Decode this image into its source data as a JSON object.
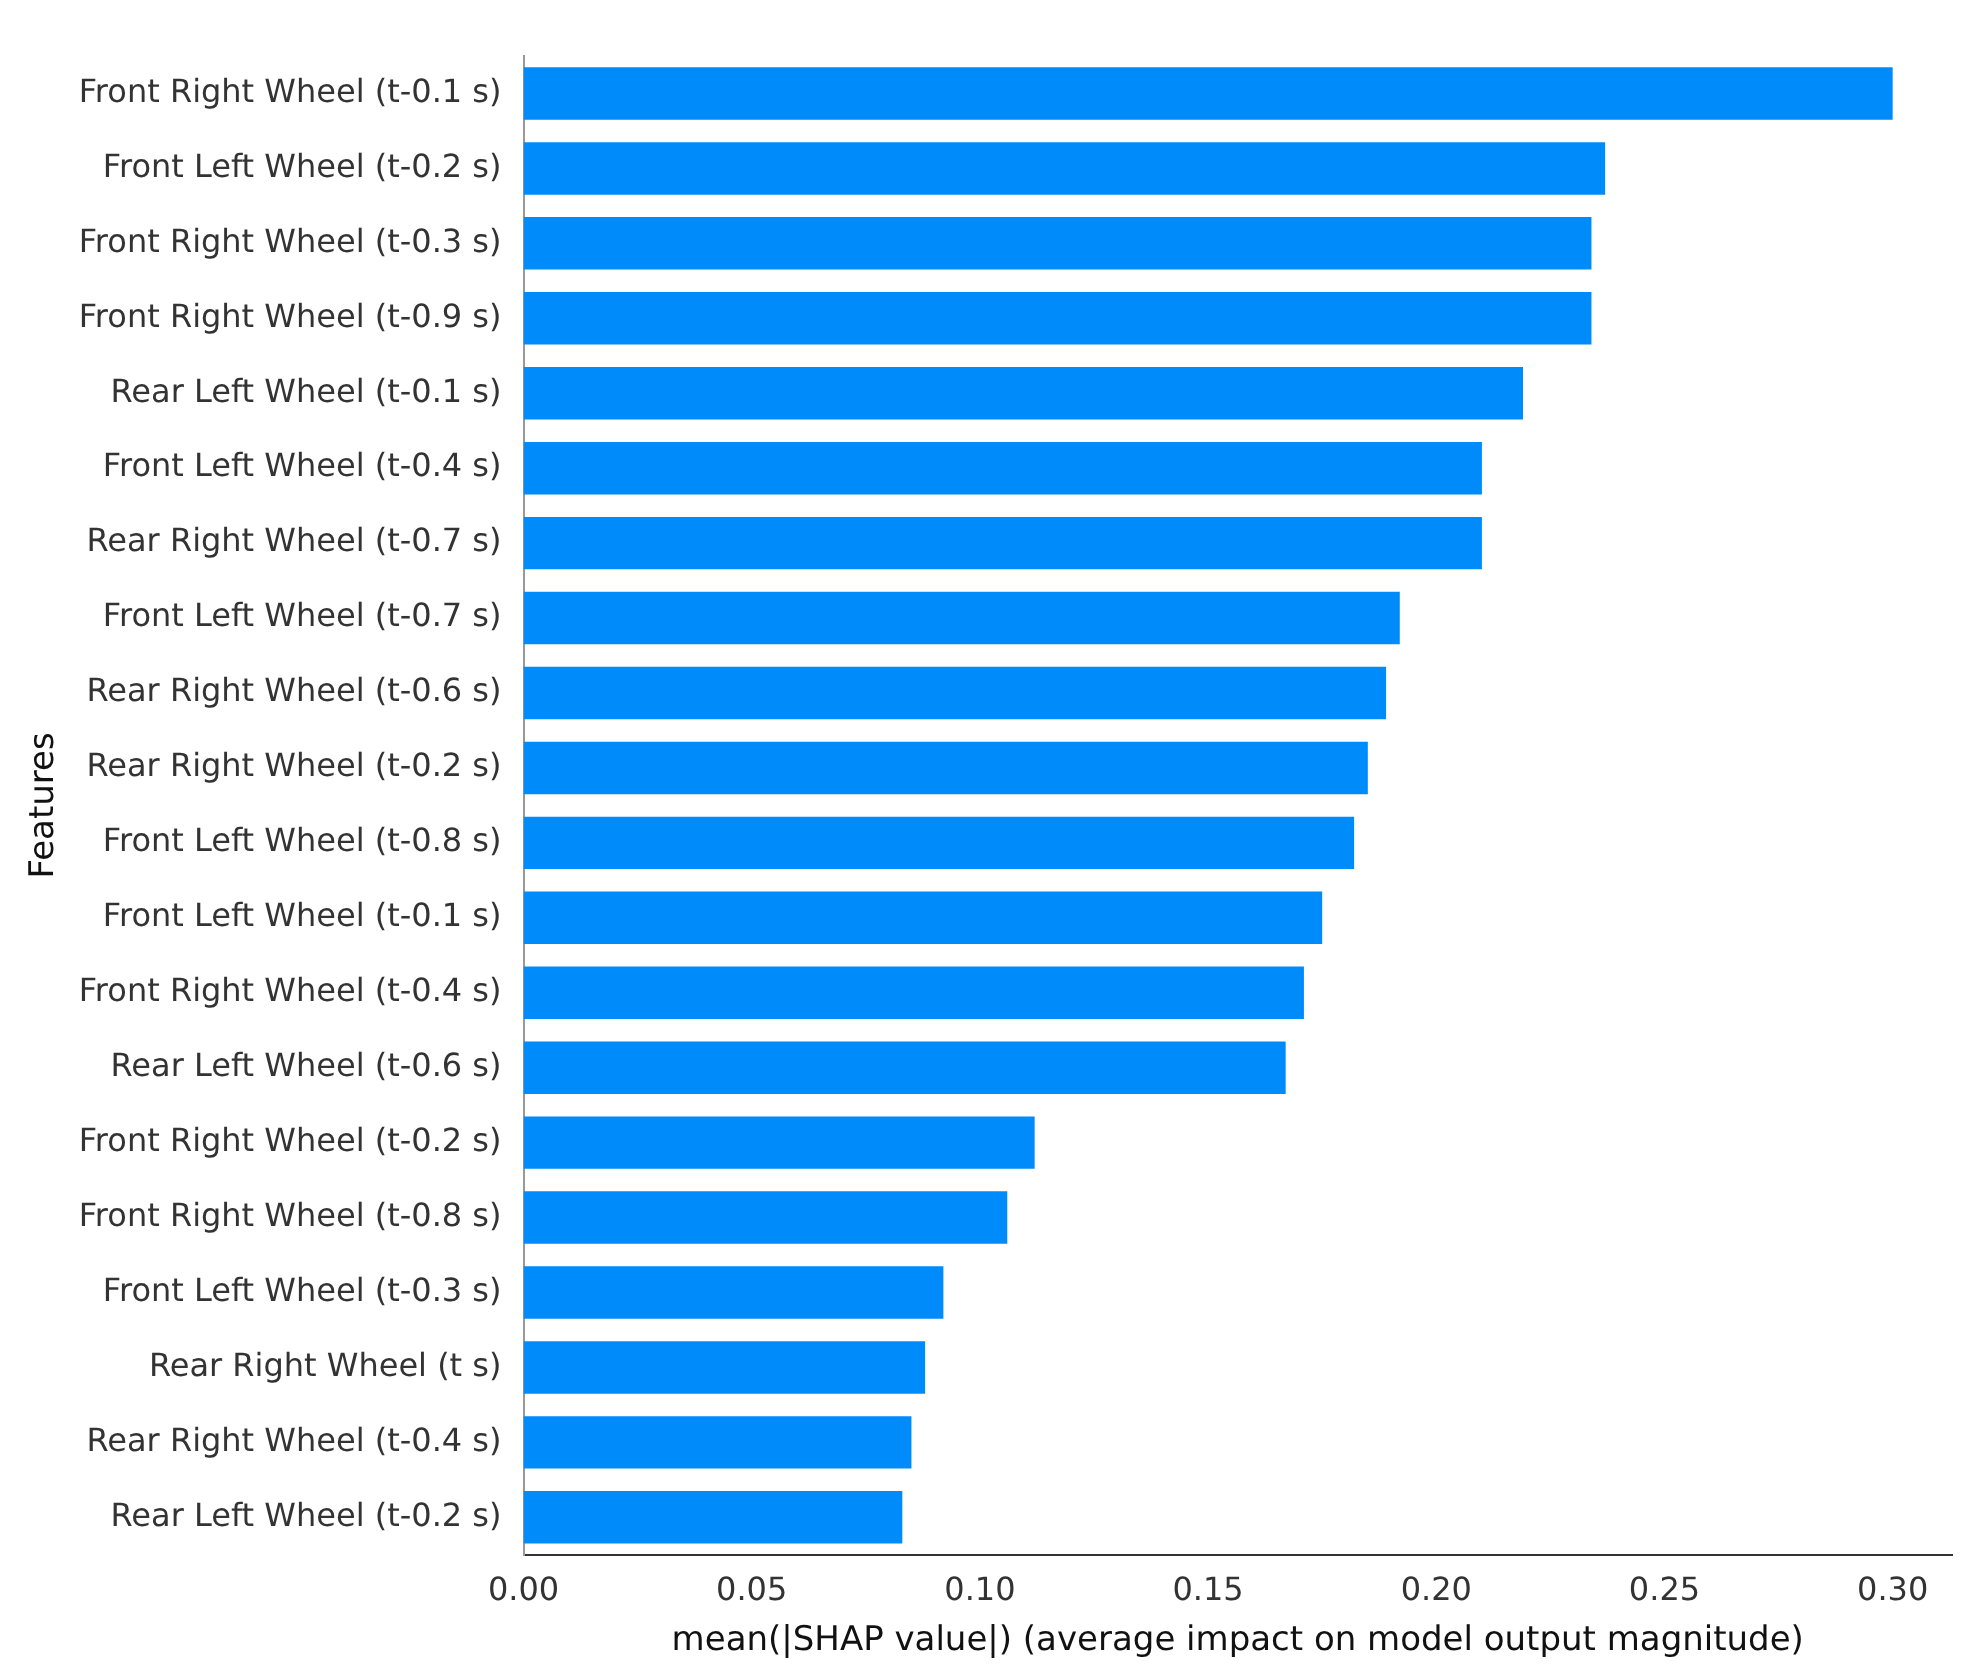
{
  "chart_data": {
    "type": "bar",
    "orientation": "horizontal",
    "xlabel": "mean(|SHAP value|) (average impact on model output magnitude)",
    "ylabel": "Features",
    "categories": [
      "Front Right Wheel (t-0.1 s)",
      "Front Left Wheel (t-0.2 s)",
      "Front Right Wheel (t-0.3 s)",
      "Front Right Wheel (t-0.9 s)",
      "Rear Left Wheel (t-0.1 s)",
      "Front Left Wheel (t-0.4 s)",
      "Rear Right Wheel (t-0.7 s)",
      "Front Left Wheel (t-0.7 s)",
      "Rear Right Wheel (t-0.6 s)",
      "Rear Right Wheel (t-0.2 s)",
      "Front Left Wheel (t-0.8 s)",
      "Front Left Wheel (t-0.1 s)",
      "Front Right Wheel (t-0.4 s)",
      "Rear Left Wheel (t-0.6 s)",
      "Front Right Wheel (t-0.2 s)",
      "Front Right Wheel (t-0.8 s)",
      "Front Left Wheel (t-0.3 s)",
      "Rear Right Wheel (t s)",
      "Rear Right Wheel (t-0.4 s)",
      "Rear Left Wheel (t-0.2 s)"
    ],
    "values": [
      0.3,
      0.237,
      0.234,
      0.234,
      0.219,
      0.21,
      0.21,
      0.192,
      0.189,
      0.185,
      0.182,
      0.175,
      0.171,
      0.167,
      0.112,
      0.106,
      0.092,
      0.088,
      0.085,
      0.083
    ],
    "color": "#008bfb",
    "xlim": [
      0,
      0.313
    ],
    "xticks": [
      {
        "value": 0,
        "label": "0.00"
      },
      0.05,
      {
        "value": 0.1,
        "label": "0.10"
      },
      0.15,
      {
        "value": 0.2,
        "label": "0.20"
      },
      0.25,
      {
        "value": 0.3,
        "label": "0.30"
      }
    ],
    "grid": false,
    "legend": false
  }
}
